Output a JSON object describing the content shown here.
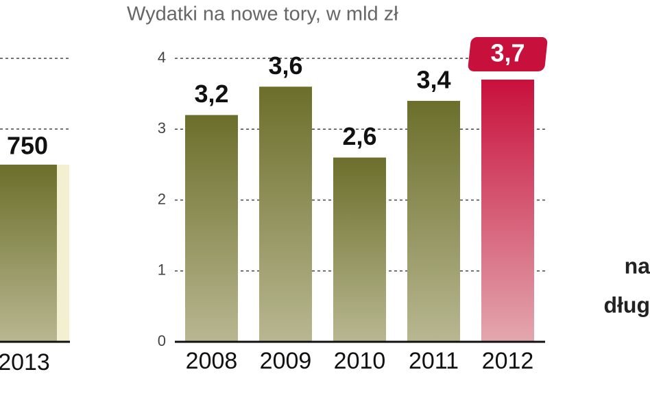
{
  "chart_data": [
    {
      "type": "bar",
      "categories": [
        "2013"
      ],
      "values": [
        750
      ],
      "value_labels": [
        "750"
      ],
      "ylim": [
        0,
        1200
      ],
      "color": "#6b6f2a"
    },
    {
      "type": "bar",
      "title": "Wydatki na nowe tory, w mld zł",
      "categories": [
        "2008",
        "2009",
        "2010",
        "2011",
        "2012"
      ],
      "values": [
        3.2,
        3.6,
        2.6,
        3.4,
        3.7
      ],
      "value_labels": [
        "3,2",
        "3,6",
        "2,6",
        "3,4",
        "3,7"
      ],
      "colors": [
        "#6b6f2a",
        "#6b6f2a",
        "#6b6f2a",
        "#6b6f2a",
        "#c8103c"
      ],
      "highlight": [
        false,
        false,
        false,
        false,
        true
      ],
      "ylim": [
        0,
        4
      ],
      "yticks": [
        0,
        1,
        2,
        3,
        4
      ],
      "grid": true
    }
  ],
  "side_text": [
    "na",
    "dług"
  ]
}
